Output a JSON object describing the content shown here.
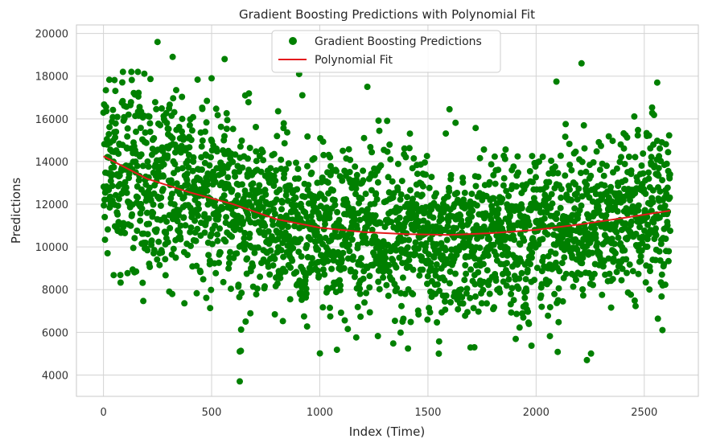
{
  "chart_data": {
    "type": "scatter",
    "title": "Gradient Boosting Predictions with Polynomial Fit",
    "xlabel": "Index (Time)",
    "ylabel": "Predictions",
    "xlim": [
      -125,
      2750
    ],
    "ylim": [
      3000,
      20400
    ],
    "xticks": [
      0,
      500,
      1000,
      1500,
      2000,
      2500
    ],
    "yticks": [
      4000,
      6000,
      8000,
      10000,
      12000,
      14000,
      16000,
      18000,
      20000
    ],
    "grid": true,
    "legend_position": "top-center",
    "colors": {
      "scatter": "#008000",
      "fit": "#e41a1c",
      "grid": "#d3d3d3",
      "frame": "#c8c8c8"
    },
    "series": [
      {
        "name": "Gradient Boosting Predictions",
        "kind": "scatter",
        "x_range": [
          0,
          2620
        ],
        "point_count": 2620,
        "notable_points": [
          {
            "x": 250,
            "y": 19600
          },
          {
            "x": 320,
            "y": 18900
          },
          {
            "x": 500,
            "y": 17900
          },
          {
            "x": 560,
            "y": 18800
          },
          {
            "x": 630,
            "y": 3700
          },
          {
            "x": 630,
            "y": 5100
          },
          {
            "x": 1220,
            "y": 17500
          },
          {
            "x": 1550,
            "y": 5000
          },
          {
            "x": 2210,
            "y": 18600
          },
          {
            "x": 2235,
            "y": 4700
          },
          {
            "x": 2560,
            "y": 17700
          }
        ]
      },
      {
        "name": "Polynomial Fit",
        "kind": "line",
        "x": [
          0,
          200,
          400,
          600,
          800,
          1000,
          1200,
          1400,
          1600,
          1800,
          2000,
          2200,
          2400,
          2620
        ],
        "y": [
          14250,
          13200,
          12550,
          12000,
          11300,
          10900,
          10700,
          10600,
          10560,
          10650,
          10800,
          11050,
          11350,
          11700
        ]
      }
    ]
  }
}
